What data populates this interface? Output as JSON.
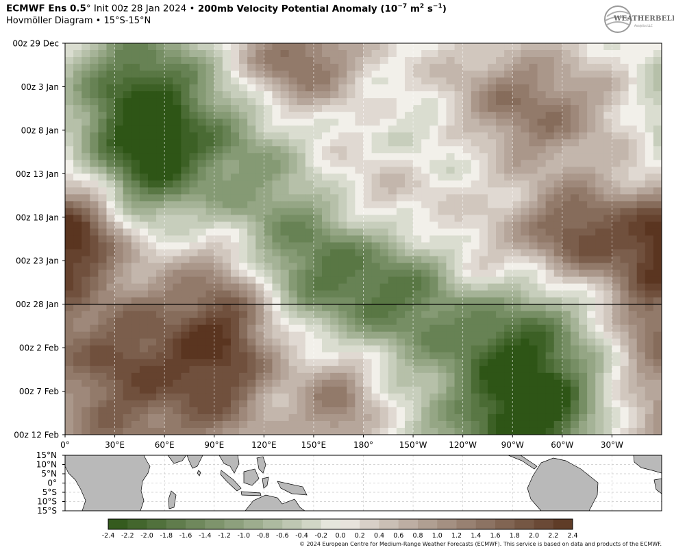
{
  "header": {
    "model": "ECMWF Ens 0.5",
    "degree_symbol": "°",
    "init": "Init 00z 28 Jan 2024 •",
    "field": "200mb Velocity Potential Anomaly",
    "units_open": "(10",
    "units_exp1": "−7",
    "units_mid": " m",
    "units_exp2": "2",
    "units_mid2": " s",
    "units_exp3": "−1",
    "units_close": ")",
    "subtitle": "Hovmöller Diagram • 15°S-15°N"
  },
  "logo": {
    "text": "WEATHERBELL",
    "subtext": "Analytics LLC"
  },
  "copyright": "© 2024 European Centre for Medium-Range Weather Forecasts (ECMWF). This service is based on data and products of the ECMWF.",
  "colors": {
    "negative_strong": "#2e5516",
    "neutral": "#f2f0ea",
    "positive_strong": "#5a3520",
    "init_line": "#000000",
    "land": "#b9b9b9"
  },
  "chart_data": {
    "type": "heatmap",
    "x_axis": {
      "range_deg": [
        0,
        360
      ],
      "tick_values_deg": [
        0,
        30,
        60,
        90,
        120,
        150,
        180,
        210,
        240,
        270,
        300,
        330
      ],
      "tick_labels": [
        "0°",
        "30°E",
        "60°E",
        "90°E",
        "120°E",
        "150°E",
        "180°",
        "150°W",
        "120°W",
        "90°W",
        "60°W",
        "30°W"
      ]
    },
    "y_axis": {
      "tick_labels": [
        "00z 29 Dec",
        "00z 3 Jan",
        "00z 8 Jan",
        "00z 13 Jan",
        "00z 18 Jan",
        "00z 23 Jan",
        "00z 28 Jan",
        "00z 2 Feb",
        "00z 7 Feb",
        "00z 12 Feb"
      ],
      "direction": "time increases downward"
    },
    "init_line_label": "00z 28 Jan",
    "map_lat_labels": [
      "15°N",
      "10°N",
      "5°N",
      "0°",
      "5°S",
      "10°S",
      "15°S"
    ],
    "colorbar": {
      "levels": [
        -2.4,
        -2.2,
        -2.0,
        -1.8,
        -1.6,
        -1.4,
        -1.2,
        -1.0,
        -0.8,
        -0.6,
        -0.4,
        -0.2,
        0.0,
        0.2,
        0.4,
        0.6,
        0.8,
        1.0,
        1.2,
        1.4,
        1.6,
        1.8,
        2.0,
        2.2,
        2.4
      ],
      "labels": [
        "-2.4",
        "-2.2",
        "-2.0",
        "-1.8",
        "-1.6",
        "-1.4",
        "-1.2",
        "-1.0",
        "-0.8",
        "-0.6",
        "-0.4",
        "-0.2",
        "0.0",
        "0.2",
        "0.4",
        "0.6",
        "0.8",
        "1.0",
        "1.2",
        "1.4",
        "1.6",
        "1.8",
        "2.0",
        "2.2",
        "2.4"
      ],
      "neg_color": "#2e5516",
      "zero_color": "#f2f0ea",
      "pos_color": "#5a3520"
    },
    "anomaly_features": [
      {
        "lon": 45,
        "day": 6,
        "amp": -2.0,
        "wlon": 30,
        "wday": 6
      },
      {
        "lon": 50,
        "day": 14,
        "amp": -1.5,
        "wlon": 22,
        "wday": 5
      },
      {
        "lon": 100,
        "day": 13,
        "amp": -1.0,
        "wlon": 30,
        "wday": 6
      },
      {
        "lon": 100,
        "day": 33,
        "amp": 1.5,
        "wlon": 22,
        "wday": 7
      },
      {
        "lon": 75,
        "day": 39,
        "amp": 1.3,
        "wlon": 30,
        "wday": 10
      },
      {
        "lon": 30,
        "day": 36,
        "amp": 1.4,
        "wlon": 25,
        "wday": 6
      },
      {
        "lon": 10,
        "day": 22,
        "amp": 2.0,
        "wlon": 18,
        "wday": 4
      },
      {
        "lon": 140,
        "day": 22,
        "amp": -1.2,
        "wlon": 30,
        "wday": 6
      },
      {
        "lon": 175,
        "day": 27,
        "amp": -1.0,
        "wlon": 35,
        "wday": 5
      },
      {
        "lon": 225,
        "day": 12,
        "amp": -1.6,
        "wlon": 35,
        "wday": 5
      },
      {
        "lon": 270,
        "day": 37,
        "amp": -1.9,
        "wlon": 30,
        "wday": 8
      },
      {
        "lon": 290,
        "day": 44,
        "amp": -1.6,
        "wlon": 25,
        "wday": 6
      },
      {
        "lon": 215,
        "day": 30,
        "amp": -1.1,
        "wlon": 35,
        "wday": 5
      },
      {
        "lon": 310,
        "day": 22,
        "amp": 2.1,
        "wlon": 28,
        "wday": 4
      },
      {
        "lon": 270,
        "day": 8,
        "amp": 1.8,
        "wlon": 40,
        "wday": 5
      },
      {
        "lon": 140,
        "day": 2,
        "amp": 1.7,
        "wlon": 25,
        "wday": 4
      },
      {
        "lon": 200,
        "day": 16,
        "amp": 1.3,
        "wlon": 40,
        "wday": 5
      },
      {
        "lon": 165,
        "day": 42,
        "amp": 1.4,
        "wlon": 18,
        "wday": 5
      },
      {
        "lon": 230,
        "day": 54,
        "amp": -1.0,
        "wlon": 45,
        "wday": 7
      },
      {
        "lon": 330,
        "day": 52,
        "amp": 1.2,
        "wlon": 25,
        "wday": 6
      },
      {
        "lon": 250,
        "day": 27,
        "amp": 1.0,
        "wlon": 20,
        "wday": 4
      },
      {
        "lon": 20,
        "day": 50,
        "amp": 0.9,
        "wlon": 20,
        "wday": 7
      },
      {
        "lon": 350,
        "day": 30,
        "amp": 1.2,
        "wlon": 15,
        "wday": 6
      }
    ]
  }
}
